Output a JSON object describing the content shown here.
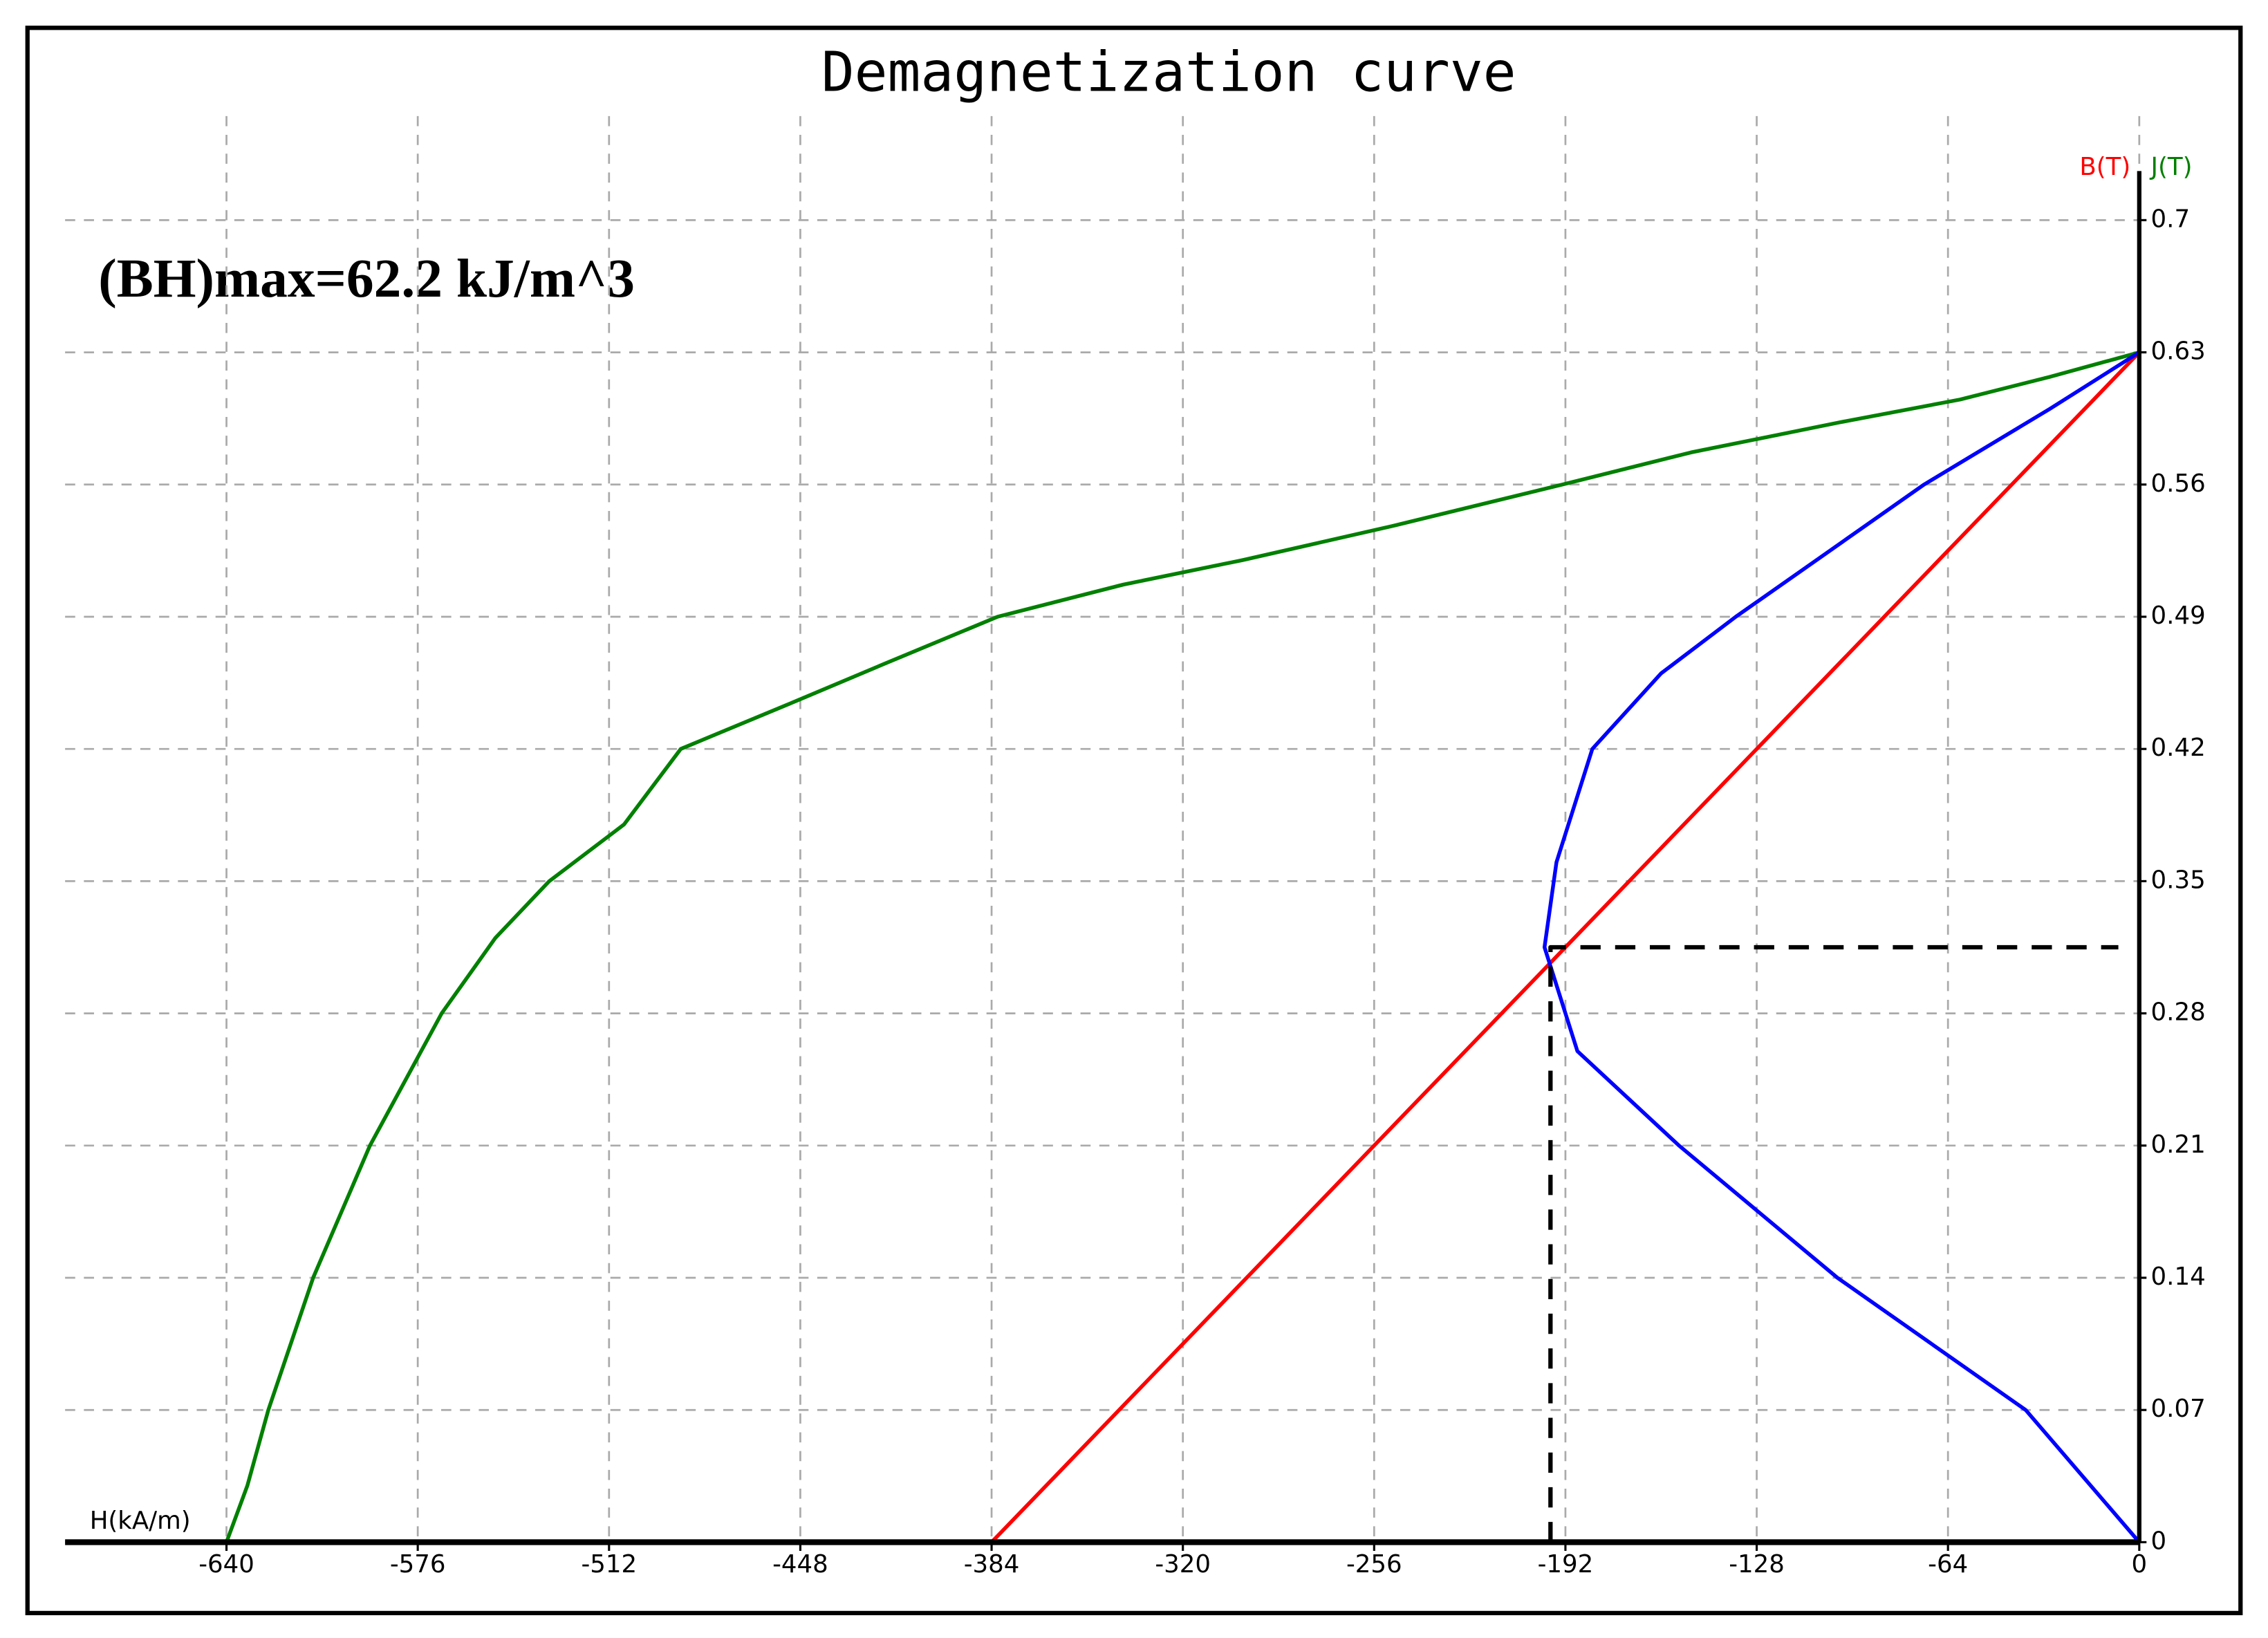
{
  "chart_data": {
    "type": "line",
    "title": "Demagnetization curve",
    "annotation": "(BH)max=62.2 kJ/m^3",
    "x_label": "H(kA/m)",
    "y_labels": [
      {
        "text": "B(T)",
        "color": "#ff0000"
      },
      {
        "text": "J(T)",
        "color": "#008000"
      }
    ],
    "xlim": [
      -694,
      0
    ],
    "ylim": [
      0,
      0.726
    ],
    "xticks": [
      -640,
      -576,
      -512,
      -448,
      -384,
      -320,
      -256,
      -192,
      -128,
      -64,
      0
    ],
    "yticks": [
      0,
      0.07,
      0.14,
      0.21,
      0.28,
      0.35,
      0.42,
      0.49,
      0.56,
      0.63,
      0.7
    ],
    "grid": true,
    "series": [
      {
        "color": "#008000",
        "dash": false,
        "x": [
          -640,
          -633,
          -626,
          -611,
          -592,
          -568,
          -550,
          -532,
          -507,
          -488,
          -450,
          -420,
          -382,
          -340,
          -300,
          -250,
          -193,
          -150,
          -100,
          -60,
          -30,
          0
        ],
        "values": [
          0,
          0.03,
          0.07,
          0.14,
          0.21,
          0.28,
          0.32,
          0.35,
          0.38,
          0.42,
          0.445,
          0.465,
          0.49,
          0.507,
          0.52,
          0.538,
          0.56,
          0.577,
          0.593,
          0.605,
          0.617,
          0.63
        ]
      },
      {
        "color": "#ff0000",
        "dash": false,
        "x": [
          -384,
          0
        ],
        "values": [
          0,
          0.63
        ]
      },
      {
        "color": "#0000ff",
        "dash": false,
        "x": [
          0,
          -38,
          -101,
          -154,
          -188,
          -199,
          -195,
          -183,
          -160,
          -135,
          -72,
          -30,
          0
        ],
        "values": [
          0,
          0.07,
          0.14,
          0.21,
          0.26,
          0.315,
          0.36,
          0.42,
          0.46,
          0.49,
          0.56,
          0.6,
          0.63
        ]
      },
      {
        "color": "#000000",
        "dash": true,
        "x": [
          -197,
          -197,
          -7
        ],
        "values": [
          0,
          0.315,
          0.315
        ]
      }
    ]
  }
}
